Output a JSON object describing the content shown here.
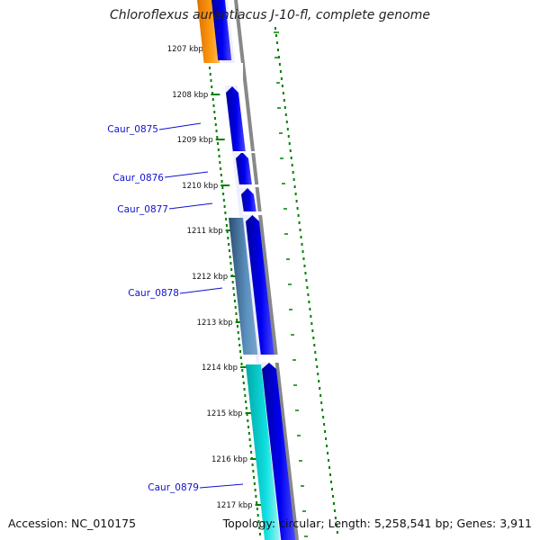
{
  "title": "Chloroflexus aurantiacus J-10-fl, complete genome",
  "footer": {
    "accession": "Accession: NC_010175",
    "summary": "Topology: circular; Length: 5,258,541 bp; Genes: 3,911"
  },
  "colors": {
    "forward_gene": "#0000ee",
    "reverse_gene": "#ff8c00",
    "rna_gene": "#4a7fa8",
    "misc_feature": "#00c8c8",
    "backbone": "#888888",
    "ticks": "#008000",
    "gene_label": "#1010d0"
  },
  "ticks": [
    {
      "label": "1207 kbp"
    },
    {
      "label": "1208 kbp"
    },
    {
      "label": "1209 kbp"
    },
    {
      "label": "1210 kbp"
    },
    {
      "label": "1211 kbp"
    },
    {
      "label": "1212 kbp"
    },
    {
      "label": "1213 kbp"
    },
    {
      "label": "1214 kbp"
    },
    {
      "label": "1215 kbp"
    },
    {
      "label": "1216 kbp"
    },
    {
      "label": "1217 kbp"
    }
  ],
  "gene_labels": [
    {
      "label": "Caur_0875"
    },
    {
      "label": "Caur_0876"
    },
    {
      "label": "Caur_0877"
    },
    {
      "label": "Caur_0878"
    },
    {
      "label": "Caur_0879"
    }
  ]
}
